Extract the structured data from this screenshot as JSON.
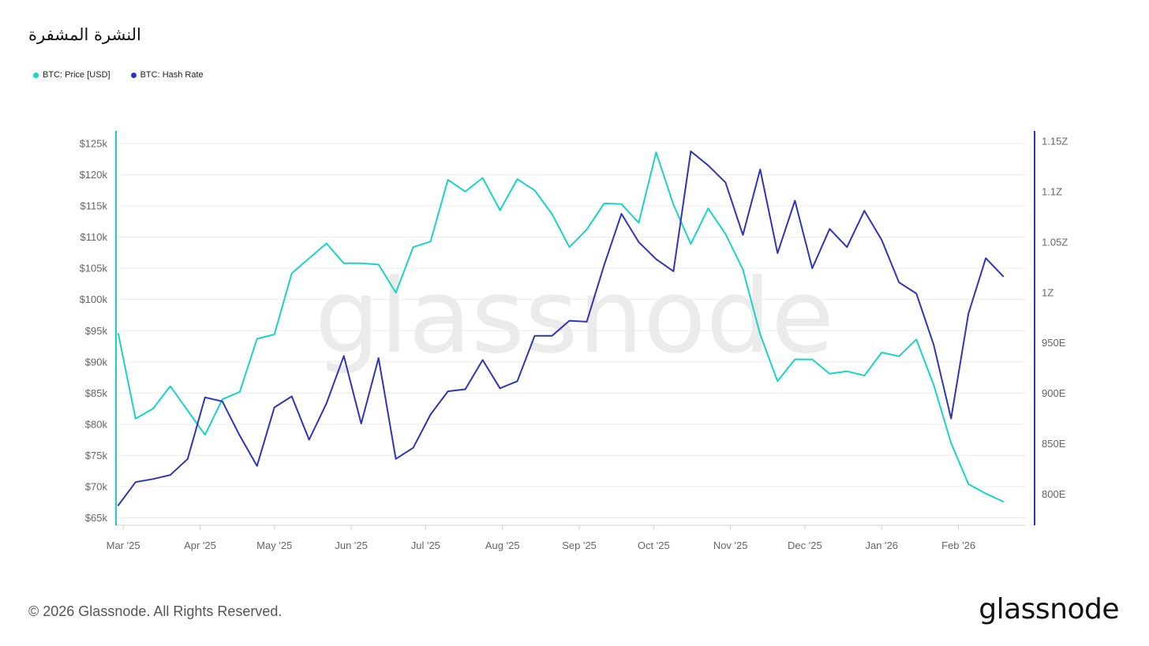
{
  "title": "النشرة المشفرة",
  "legend": {
    "price": {
      "label": "BTC: Price [USD]",
      "color": "#19d3c5"
    },
    "hash": {
      "label": "BTC: Hash Rate",
      "color": "#2e35b5"
    }
  },
  "footer": {
    "copyright": "© 2026 Glassnode. All Rights Reserved.",
    "logo": "glassnode"
  },
  "watermark": "glassnode",
  "chart_data": {
    "type": "line",
    "x_domain": [
      "2025-02-28",
      "2026-02-25"
    ],
    "x_ticks": [
      {
        "label": "Mar '25",
        "date": "2025-03-01"
      },
      {
        "label": "Apr '25",
        "date": "2025-04-01"
      },
      {
        "label": "May '25",
        "date": "2025-05-01"
      },
      {
        "label": "Jun '25",
        "date": "2025-06-01"
      },
      {
        "label": "Jul '25",
        "date": "2025-07-01"
      },
      {
        "label": "Aug '25",
        "date": "2025-08-01"
      },
      {
        "label": "Sep '25",
        "date": "2025-09-01"
      },
      {
        "label": "Oct '25",
        "date": "2025-10-01"
      },
      {
        "label": "Nov '25",
        "date": "2025-11-01"
      },
      {
        "label": "Dec '25",
        "date": "2025-12-01"
      },
      {
        "label": "Jan '26",
        "date": "2026-01-01"
      },
      {
        "label": "Feb '26",
        "date": "2026-02-01"
      }
    ],
    "y_left": {
      "ylim": [
        64000,
        126000
      ],
      "ticks": [
        {
          "v": 65000,
          "label": "$65k"
        },
        {
          "v": 70000,
          "label": "$70k"
        },
        {
          "v": 75000,
          "label": "$75k"
        },
        {
          "v": 80000,
          "label": "$80k"
        },
        {
          "v": 85000,
          "label": "$85k"
        },
        {
          "v": 90000,
          "label": "$90k"
        },
        {
          "v": 95000,
          "label": "$95k"
        },
        {
          "v": 100000,
          "label": "$100k"
        },
        {
          "v": 105000,
          "label": "$105k"
        },
        {
          "v": 110000,
          "label": "$110k"
        },
        {
          "v": 115000,
          "label": "$115k"
        },
        {
          "v": 120000,
          "label": "$120k"
        },
        {
          "v": 125000,
          "label": "$125k"
        }
      ],
      "color": "#19d3c5"
    },
    "y_right": {
      "unit": "EH/s",
      "ylim": [
        771,
        1159
      ],
      "ticks": [
        {
          "v": 800,
          "label": "800E"
        },
        {
          "v": 850,
          "label": "850E"
        },
        {
          "v": 900,
          "label": "900E"
        },
        {
          "v": 950,
          "label": "950E"
        },
        {
          "v": 1000,
          "label": "1Z"
        },
        {
          "v": 1050,
          "label": "1.05Z"
        },
        {
          "v": 1100,
          "label": "1.1Z"
        },
        {
          "v": 1150,
          "label": "1.15Z"
        }
      ],
      "color": "#2e35b5"
    },
    "series": [
      {
        "name": "BTC: Price [USD]",
        "axis": "left",
        "color": "#19d3c5",
        "dates": [
          "2025-02-27",
          "2025-03-06",
          "2025-03-13",
          "2025-03-20",
          "2025-03-27",
          "2025-04-03",
          "2025-04-10",
          "2025-04-17",
          "2025-04-24",
          "2025-05-01",
          "2025-05-08",
          "2025-05-15",
          "2025-05-22",
          "2025-05-29",
          "2025-06-05",
          "2025-06-12",
          "2025-06-19",
          "2025-06-26",
          "2025-07-03",
          "2025-07-10",
          "2025-07-17",
          "2025-07-24",
          "2025-07-31",
          "2025-08-07",
          "2025-08-14",
          "2025-08-21",
          "2025-08-28",
          "2025-09-04",
          "2025-09-11",
          "2025-09-18",
          "2025-09-25",
          "2025-10-02",
          "2025-10-09",
          "2025-10-16",
          "2025-10-23",
          "2025-10-30",
          "2025-11-06",
          "2025-11-13",
          "2025-11-20",
          "2025-11-27",
          "2025-12-04",
          "2025-12-11",
          "2025-12-18",
          "2025-12-25",
          "2026-01-01",
          "2026-01-08",
          "2026-01-15",
          "2026-01-22",
          "2026-01-29",
          "2026-02-05",
          "2026-02-12",
          "2026-02-19"
        ],
        "values": [
          94500,
          80900,
          82500,
          86100,
          82200,
          78300,
          84000,
          85200,
          93700,
          94400,
          104200,
          106600,
          109000,
          105800,
          105800,
          105600,
          101100,
          108400,
          109300,
          119200,
          117300,
          119500,
          114300,
          119300,
          117500,
          113700,
          108400,
          111200,
          115400,
          115300,
          112300,
          123600,
          115200,
          108900,
          114600,
          110500,
          104800,
          94400,
          86900,
          90400,
          90400,
          88100,
          88500,
          87800,
          91500,
          90900,
          93600,
          86300,
          77000,
          70400,
          68900,
          67600
        ]
      },
      {
        "name": "BTC: Hash Rate",
        "axis": "right",
        "color": "#2e35b5",
        "dates": [
          "2025-02-27",
          "2025-03-06",
          "2025-03-13",
          "2025-03-20",
          "2025-03-27",
          "2025-04-03",
          "2025-04-10",
          "2025-04-17",
          "2025-04-24",
          "2025-05-01",
          "2025-05-08",
          "2025-05-15",
          "2025-05-22",
          "2025-05-29",
          "2025-06-05",
          "2025-06-12",
          "2025-06-19",
          "2025-06-26",
          "2025-07-03",
          "2025-07-10",
          "2025-07-17",
          "2025-07-24",
          "2025-07-31",
          "2025-08-07",
          "2025-08-14",
          "2025-08-21",
          "2025-08-28",
          "2025-09-04",
          "2025-09-11",
          "2025-09-18",
          "2025-09-25",
          "2025-10-02",
          "2025-10-09",
          "2025-10-16",
          "2025-10-23",
          "2025-10-30",
          "2025-11-06",
          "2025-11-13",
          "2025-11-20",
          "2025-11-27",
          "2025-12-04",
          "2025-12-11",
          "2025-12-18",
          "2025-12-25",
          "2026-01-01",
          "2026-01-08",
          "2026-01-15",
          "2026-01-22",
          "2026-01-29",
          "2026-02-05",
          "2026-02-12",
          "2026-02-19"
        ],
        "values": [
          789,
          812,
          815,
          819,
          835,
          896,
          892,
          858,
          828,
          886,
          897,
          854,
          890,
          937,
          870,
          935,
          835,
          846,
          879,
          902,
          904,
          933,
          905,
          912,
          957,
          957,
          972,
          971,
          1027,
          1078,
          1050,
          1033,
          1021,
          1140,
          1126,
          1109,
          1057,
          1122,
          1039,
          1091,
          1024,
          1063,
          1045,
          1081,
          1052,
          1010,
          999,
          948,
          875,
          979,
          1034,
          1016
        ]
      }
    ]
  }
}
